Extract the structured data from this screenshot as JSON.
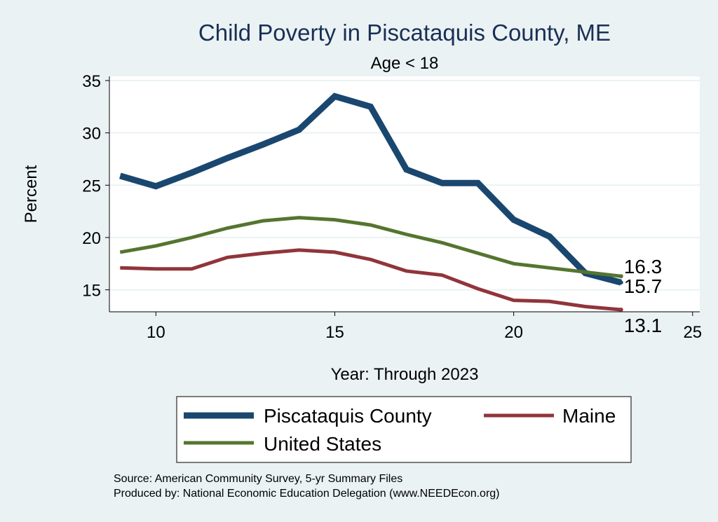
{
  "chart_data": {
    "type": "line",
    "title": "Child Poverty in Piscataquis County, ME",
    "subtitle": "Age < 18",
    "xlabel": "Year: Through 2023",
    "ylabel": "Percent",
    "xlim": [
      8.7,
      25.2
    ],
    "ylim": [
      12.9,
      35.4
    ],
    "xticks": [
      10,
      15,
      20,
      25
    ],
    "yticks": [
      15,
      20,
      25,
      30,
      35
    ],
    "grid": true,
    "legend_position": "bottom",
    "series": [
      {
        "name": "Piscataquis County",
        "color": "#1a476f",
        "x": [
          9,
          10,
          11,
          12,
          13,
          14,
          15,
          16,
          17,
          18,
          19,
          20,
          21,
          22,
          23
        ],
        "y": [
          25.9,
          24.9,
          26.2,
          27.6,
          28.9,
          30.3,
          33.5,
          32.5,
          26.5,
          25.2,
          25.2,
          21.7,
          20.1,
          16.6,
          15.7
        ],
        "end_label": "15.7",
        "line_width": 9
      },
      {
        "name": "Maine",
        "color": "#90353b",
        "x": [
          9,
          10,
          11,
          12,
          13,
          14,
          15,
          16,
          17,
          18,
          19,
          20,
          21,
          22,
          23
        ],
        "y": [
          17.1,
          17.0,
          17.0,
          18.1,
          18.5,
          18.8,
          18.6,
          17.9,
          16.8,
          16.4,
          15.1,
          14.0,
          13.9,
          13.4,
          13.1
        ],
        "end_label": "13.1",
        "line_width": 5
      },
      {
        "name": "United States",
        "color": "#55752f",
        "x": [
          9,
          10,
          11,
          12,
          13,
          14,
          15,
          16,
          17,
          18,
          19,
          20,
          21,
          22,
          23
        ],
        "y": [
          18.6,
          19.2,
          20.0,
          20.9,
          21.6,
          21.9,
          21.7,
          21.2,
          20.3,
          19.5,
          18.5,
          17.5,
          17.1,
          16.7,
          16.3
        ],
        "end_label": "16.3",
        "line_width": 5
      }
    ],
    "notes": [
      "Source: American Community Survey, 5-yr Summary Files",
      "Produced by: National Economic Education Delegation (www.NEEDEcon.org)"
    ]
  }
}
